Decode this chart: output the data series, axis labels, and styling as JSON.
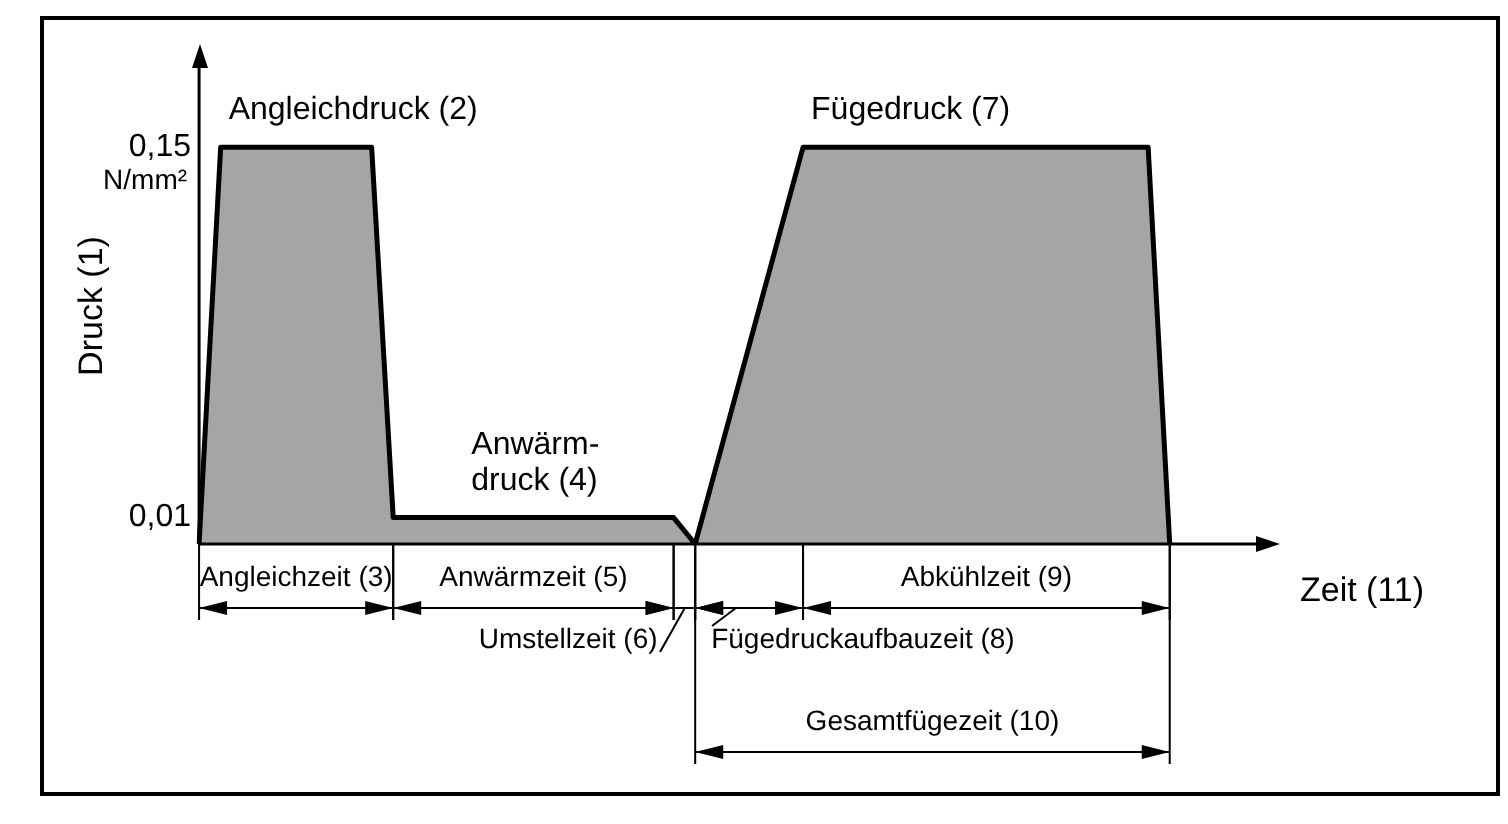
{
  "chart_data": {
    "type": "area",
    "xlabel": "Zeit (11)",
    "ylabel": "Druck (1)",
    "categories": [
      null,
      null,
      null,
      null,
      null,
      null,
      null,
      null,
      null,
      null,
      null,
      null,
      null,
      null,
      null,
      null,
      null,
      null,
      null,
      null,
      null,
      null,
      null,
      null,
      null,
      null,
      null,
      null,
      null,
      null,
      null,
      null,
      null,
      null,
      null,
      null,
      null,
      null,
      null,
      null,
      null,
      null,
      null,
      null,
      null,
      null,
      null,
      null,
      null,
      null
    ],
    "series": [
      {
        "color": "#000000",
        "values": [
          0,
          0.15,
          0.15,
          0.15,
          0.15,
          0.15,
          0.15,
          0.15,
          0.15,
          0.01,
          0.01,
          0.01,
          0.01,
          0.01,
          0.01,
          0.01,
          0.01,
          0.01,
          0.01,
          0.01,
          0.01,
          0.01,
          0.01,
          0,
          0.03,
          0.06,
          0.09,
          0.12,
          0.15,
          0.15,
          0.15,
          0.15,
          0.15,
          0.15,
          0.15,
          0.15,
          0.15,
          0.15,
          0.15,
          0.15,
          0.15,
          0.15,
          0.15,
          0.15,
          0.15,
          0,
          null,
          null,
          null,
          null
        ]
      }
    ],
    "ylim": [
      0,
      0.18
    ],
    "yticks": [
      {
        "value": 0.01,
        "label": "0,01"
      },
      {
        "value": 0.15,
        "label": "0,15"
      }
    ],
    "tick_labels": "y",
    "grid": false,
    "legend": false,
    "line_style": "solid",
    "marker": "none",
    "annotations": [
      "Angleichdruck (2)",
      "Anwärm-\ndruck (4)",
      "Fügedruck (7)",
      "N/mm²",
      "Angleichzeit (3)",
      "Anwärmzeit (5)",
      "Umstellzeit (6)",
      "Fügedruckaufbauzeit (8)",
      "Abkühlzeit (9)",
      "Gesamtfügezeit (10)"
    ]
  }
}
